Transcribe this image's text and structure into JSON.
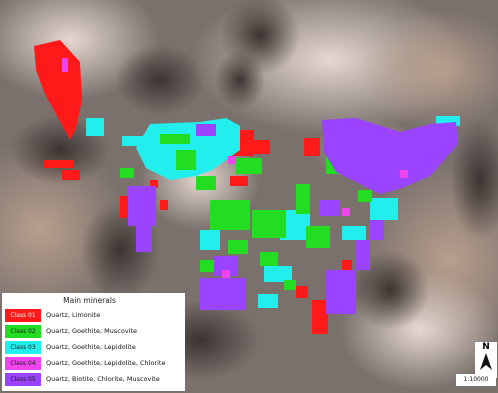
{
  "legend": {
    "title": "Main minerals",
    "classes": [
      {
        "code": "Class 01",
        "minerals": "Quartz, Limonite",
        "color": "#ff1a1a",
        "text_color": "#ffffff"
      },
      {
        "code": "Class 02",
        "minerals": "Quartz, Goethite, Muscovite",
        "color": "#22dd22",
        "text_color": "#1a1a1a"
      },
      {
        "code": "Class 03",
        "minerals": "Quartz, Goethite, Lepidolite",
        "color": "#22eeee",
        "text_color": "#1a1a1a"
      },
      {
        "code": "Class 04",
        "minerals": "Quartz, Goethite, Lepidolite, Chlorite",
        "color": "#ee44ee",
        "text_color": "#1a1a1a"
      },
      {
        "code": "Class 05",
        "minerals": "Quartz, Biotite, Chlorite, Muscovite",
        "color": "#9b44ff",
        "text_color": "#1a1a1a"
      }
    ]
  },
  "north_arrow": {
    "label": "N",
    "icon": "north-arrow-icon"
  },
  "scale": {
    "label": "1:10000"
  }
}
